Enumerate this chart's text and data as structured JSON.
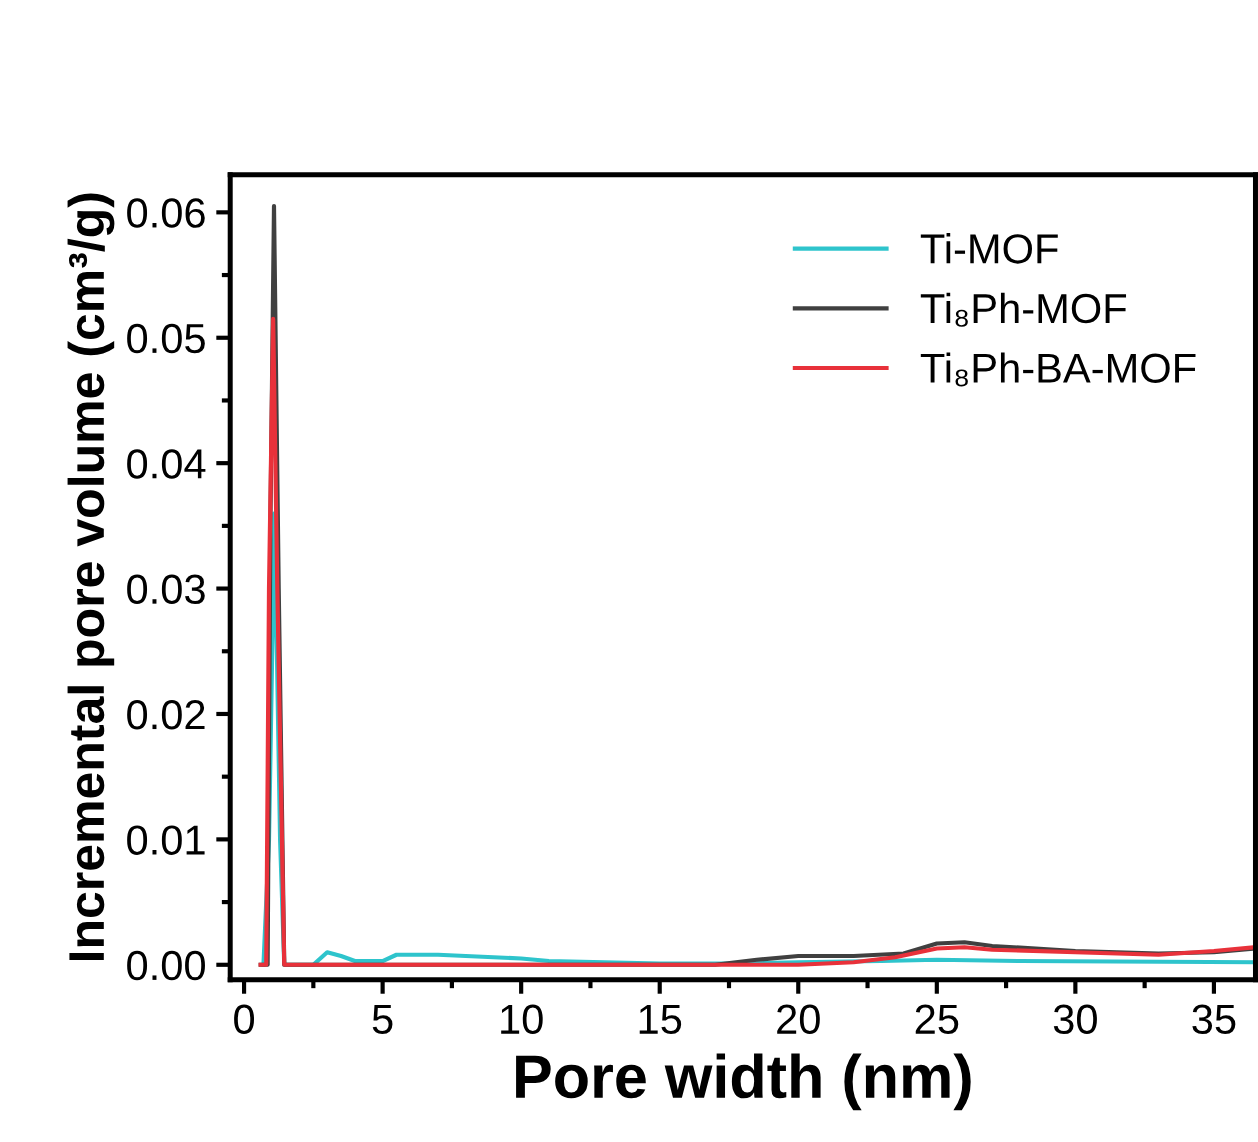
{
  "chart_data": {
    "type": "line",
    "xlabel": "Pore width (nm)",
    "ylabel": "Incremental pore volume (cm³/g)",
    "xlim": [
      -0.5,
      36.5
    ],
    "xticks": [
      0,
      5,
      10,
      15,
      20,
      25,
      30,
      35
    ],
    "ylim": [
      -0.0012,
      0.063
    ],
    "yticks": [
      {
        "value": 0,
        "label": "0.00"
      },
      {
        "value": 0.01,
        "label": "0.01"
      },
      {
        "value": 0.02,
        "label": "0.02"
      },
      {
        "value": 0.03,
        "label": "0.03"
      },
      {
        "value": 0.04,
        "label": "0.04"
      },
      {
        "value": 0.05,
        "label": "0.05"
      },
      {
        "value": 0.06,
        "label": "0.06"
      }
    ],
    "grid": false,
    "legend": "top right",
    "marker": "none",
    "line_style": "solid",
    "series": [
      {
        "name": "Ti-MOF",
        "color": "#2ec4cc",
        "x": [
          0.7,
          0.9,
          1.1,
          1.3,
          1.45,
          2.5,
          3,
          3.5,
          4,
          5,
          5.5,
          7,
          9,
          10,
          11,
          15,
          18,
          20,
          23,
          25,
          28,
          36.5
        ],
        "values": [
          0,
          0.01,
          0.036,
          0.01,
          0,
          0,
          0.001,
          0.0007,
          0.0003,
          0.0003,
          0.0008,
          0.0008,
          0.0006,
          0.0005,
          0.0003,
          0.0001,
          0.0001,
          0.0002,
          0.0003,
          0.0004,
          0.0003,
          0.0002
        ]
      },
      {
        "name": "Ti₈Ph-MOF",
        "color": "#404040",
        "x": [
          0.6,
          0.85,
          0.95,
          1.08,
          1.25,
          1.45,
          10,
          17,
          18.5,
          20,
          22,
          23.8,
          25,
          26,
          27,
          30,
          33,
          35,
          36.5
        ],
        "values": [
          0,
          0,
          0.035,
          0.0605,
          0.03,
          0,
          0,
          0,
          0.0004,
          0.0007,
          0.0007,
          0.0009,
          0.0017,
          0.0018,
          0.0015,
          0.0011,
          0.0009,
          0.001,
          0.0013
        ]
      },
      {
        "name": "Ti₈Ph-BA-MOF",
        "color": "#e8313a",
        "x": [
          0.6,
          0.8,
          0.9,
          1.05,
          1.2,
          1.45,
          5,
          10,
          15,
          17.5,
          20,
          22,
          23.5,
          25,
          26,
          27,
          30,
          33,
          35,
          36.5
        ],
        "values": [
          0,
          0,
          0.03,
          0.0515,
          0.03,
          0,
          0,
          0,
          0,
          0,
          0,
          0.0002,
          0.0006,
          0.0013,
          0.0014,
          0.0012,
          0.001,
          0.0008,
          0.0011,
          0.0014
        ]
      }
    ]
  }
}
